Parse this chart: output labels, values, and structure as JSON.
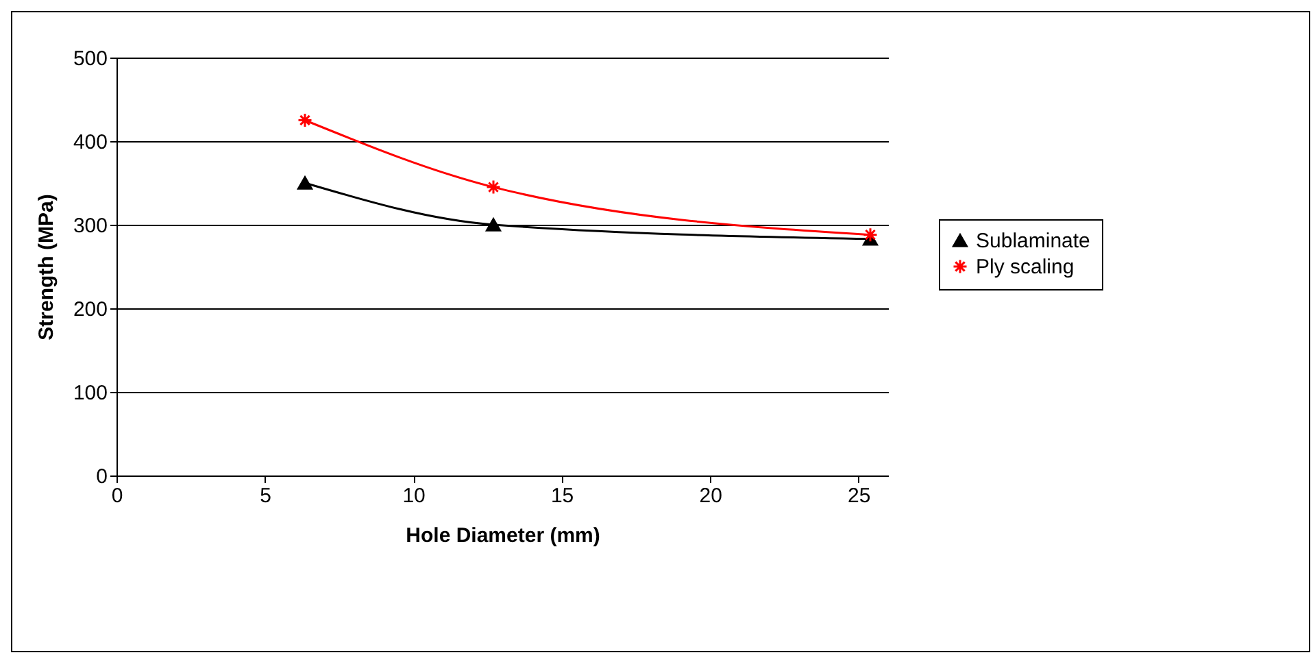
{
  "chart_data": {
    "type": "line",
    "xlabel": "Hole Diameter (mm)",
    "ylabel": "Strength (MPa)",
    "x": [
      6.35,
      12.7,
      25.4
    ],
    "series": [
      {
        "name": "Sublaminate",
        "color": "#000000",
        "marker": "triangle",
        "values": [
          350,
          300,
          283
        ]
      },
      {
        "name": "Ply scaling",
        "color": "#ff0000",
        "marker": "cross",
        "values": [
          425,
          345,
          288
        ]
      }
    ],
    "xlim": [
      0,
      26
    ],
    "xticks": [
      0,
      5,
      10,
      15,
      20,
      25
    ],
    "ylim": [
      0,
      500
    ],
    "yticks": [
      0,
      100,
      200,
      300,
      400,
      500
    ],
    "grid": "y",
    "legend": "right",
    "line_style": "solid"
  }
}
